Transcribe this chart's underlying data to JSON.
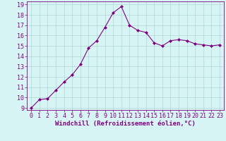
{
  "x": [
    0,
    1,
    2,
    3,
    4,
    5,
    6,
    7,
    8,
    9,
    10,
    11,
    12,
    13,
    14,
    15,
    16,
    17,
    18,
    19,
    20,
    21,
    22,
    23
  ],
  "y": [
    9.0,
    9.8,
    9.9,
    10.7,
    11.5,
    12.2,
    13.2,
    14.8,
    15.5,
    16.8,
    18.2,
    18.8,
    17.0,
    16.5,
    16.3,
    15.3,
    15.0,
    15.5,
    15.6,
    15.5,
    15.2,
    15.1,
    15.0,
    15.1
  ],
  "line_color": "#800080",
  "marker": "D",
  "marker_size": 2,
  "bg_color": "#d8f5f5",
  "grid_color": "#b0d8d8",
  "xlabel": "Windchill (Refroidissement éolien,°C)",
  "ylim": [
    9,
    19
  ],
  "xlim": [
    -0.5,
    23.5
  ],
  "yticks": [
    9,
    10,
    11,
    12,
    13,
    14,
    15,
    16,
    17,
    18,
    19
  ],
  "xticks": [
    0,
    1,
    2,
    3,
    4,
    5,
    6,
    7,
    8,
    9,
    10,
    11,
    12,
    13,
    14,
    15,
    16,
    17,
    18,
    19,
    20,
    21,
    22,
    23
  ],
  "tick_fontsize": 6,
  "xlabel_fontsize": 6.5
}
